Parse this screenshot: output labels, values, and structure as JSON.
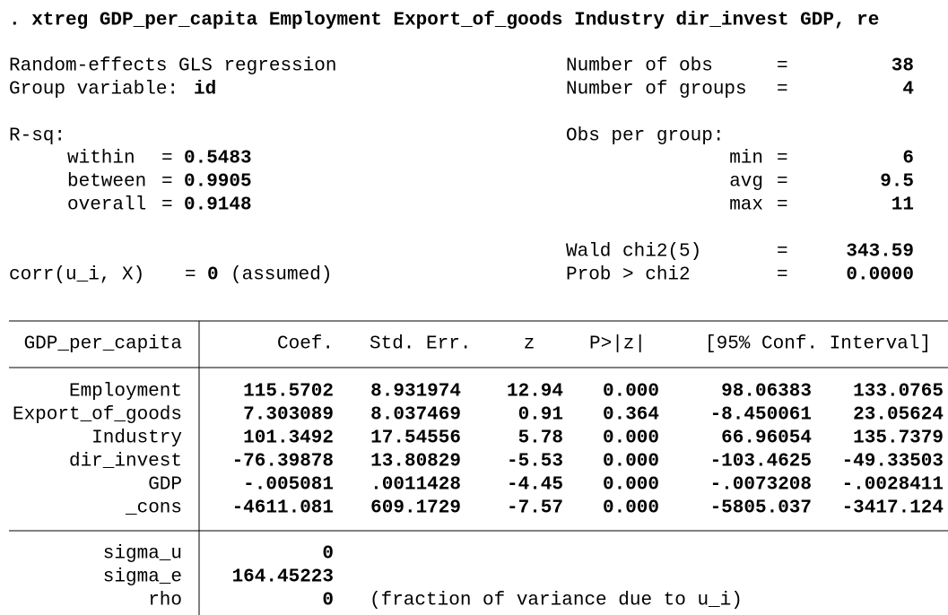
{
  "command": ". xtreg GDP_per_capita Employment Export_of_goods Industry dir_invest GDP, re",
  "equals": "=",
  "header": {
    "title": "Random-effects GLS regression",
    "group": {
      "label": "Group variable:",
      "value": "id"
    },
    "rsq_label": "R-sq:",
    "rsq": [
      {
        "label": "within",
        "value": "0.5483"
      },
      {
        "label": "between",
        "value": "0.9905"
      },
      {
        "label": "overall",
        "value": "0.9148"
      }
    ],
    "corr": {
      "label": "corr(u_i, X)",
      "value": "0",
      "note": "(assumed)"
    },
    "right": [
      {
        "label": "Number of obs",
        "value": "38"
      },
      {
        "label": "Number of groups",
        "value": "4"
      }
    ],
    "obs_label": "Obs per group:",
    "obs": [
      {
        "label": "min",
        "value": "6"
      },
      {
        "label": "avg",
        "value": "9.5"
      },
      {
        "label": "max",
        "value": "11"
      }
    ],
    "tests": [
      {
        "label": "Wald chi2(5)",
        "value": "343.59"
      },
      {
        "label": "Prob > chi2",
        "value": "0.0000"
      }
    ]
  },
  "table": {
    "columns": [
      "GDP_per_capita",
      "Coef.",
      "Std. Err.",
      "z",
      "P>|z|",
      "[95% Conf. Interval]"
    ],
    "rows": [
      [
        "Employment",
        "115.5702",
        "8.931974",
        "12.94",
        "0.000",
        "98.06383",
        "133.0765"
      ],
      [
        "Export_of_goods",
        "7.303089",
        "8.037469",
        "0.91",
        "0.364",
        "-8.450061",
        "23.05624"
      ],
      [
        "Industry",
        "101.3492",
        "17.54556",
        "5.78",
        "0.000",
        "66.96054",
        "135.7379"
      ],
      [
        "dir_invest",
        "-76.39878",
        "13.80829",
        "-5.53",
        "0.000",
        "-103.4625",
        "-49.33503"
      ],
      [
        "GDP",
        "-.005081",
        ".0011428",
        "-4.45",
        "0.000",
        "-.0073208",
        "-.0028411"
      ],
      [
        "_cons",
        "-4611.081",
        "609.1729",
        "-7.57",
        "0.000",
        "-5805.037",
        "-3417.124"
      ]
    ],
    "extra": [
      [
        "sigma_u",
        "0"
      ],
      [
        "sigma_e",
        "164.45223"
      ],
      [
        "rho",
        "0"
      ]
    ],
    "extra_note": "(fraction of variance due to u_i)"
  }
}
